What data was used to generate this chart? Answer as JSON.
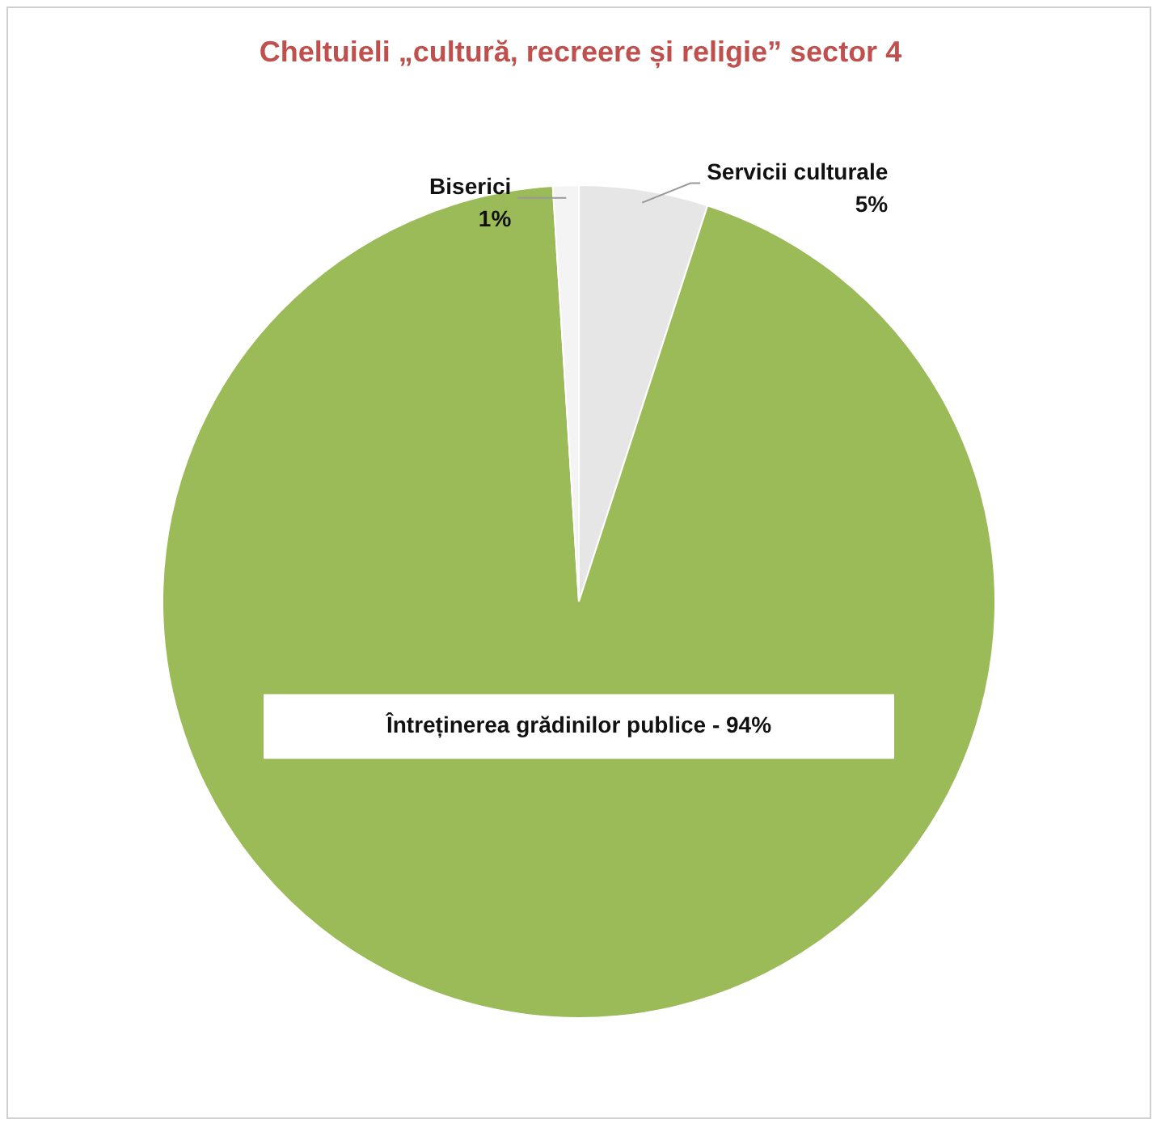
{
  "chart_data": {
    "type": "pie",
    "title": "Cheltuieli  „cultură, recreere și religie” sector 4",
    "categories": [
      "Servicii culturale",
      "Întreținerea grădinilor publice",
      "Biserici"
    ],
    "values": [
      5,
      94,
      1
    ],
    "value_labels": [
      "5%",
      "94%",
      "1%"
    ],
    "colors": [
      "#e6e6e6",
      "#9bbb59",
      "#f4f4f4"
    ],
    "legend": false
  }
}
